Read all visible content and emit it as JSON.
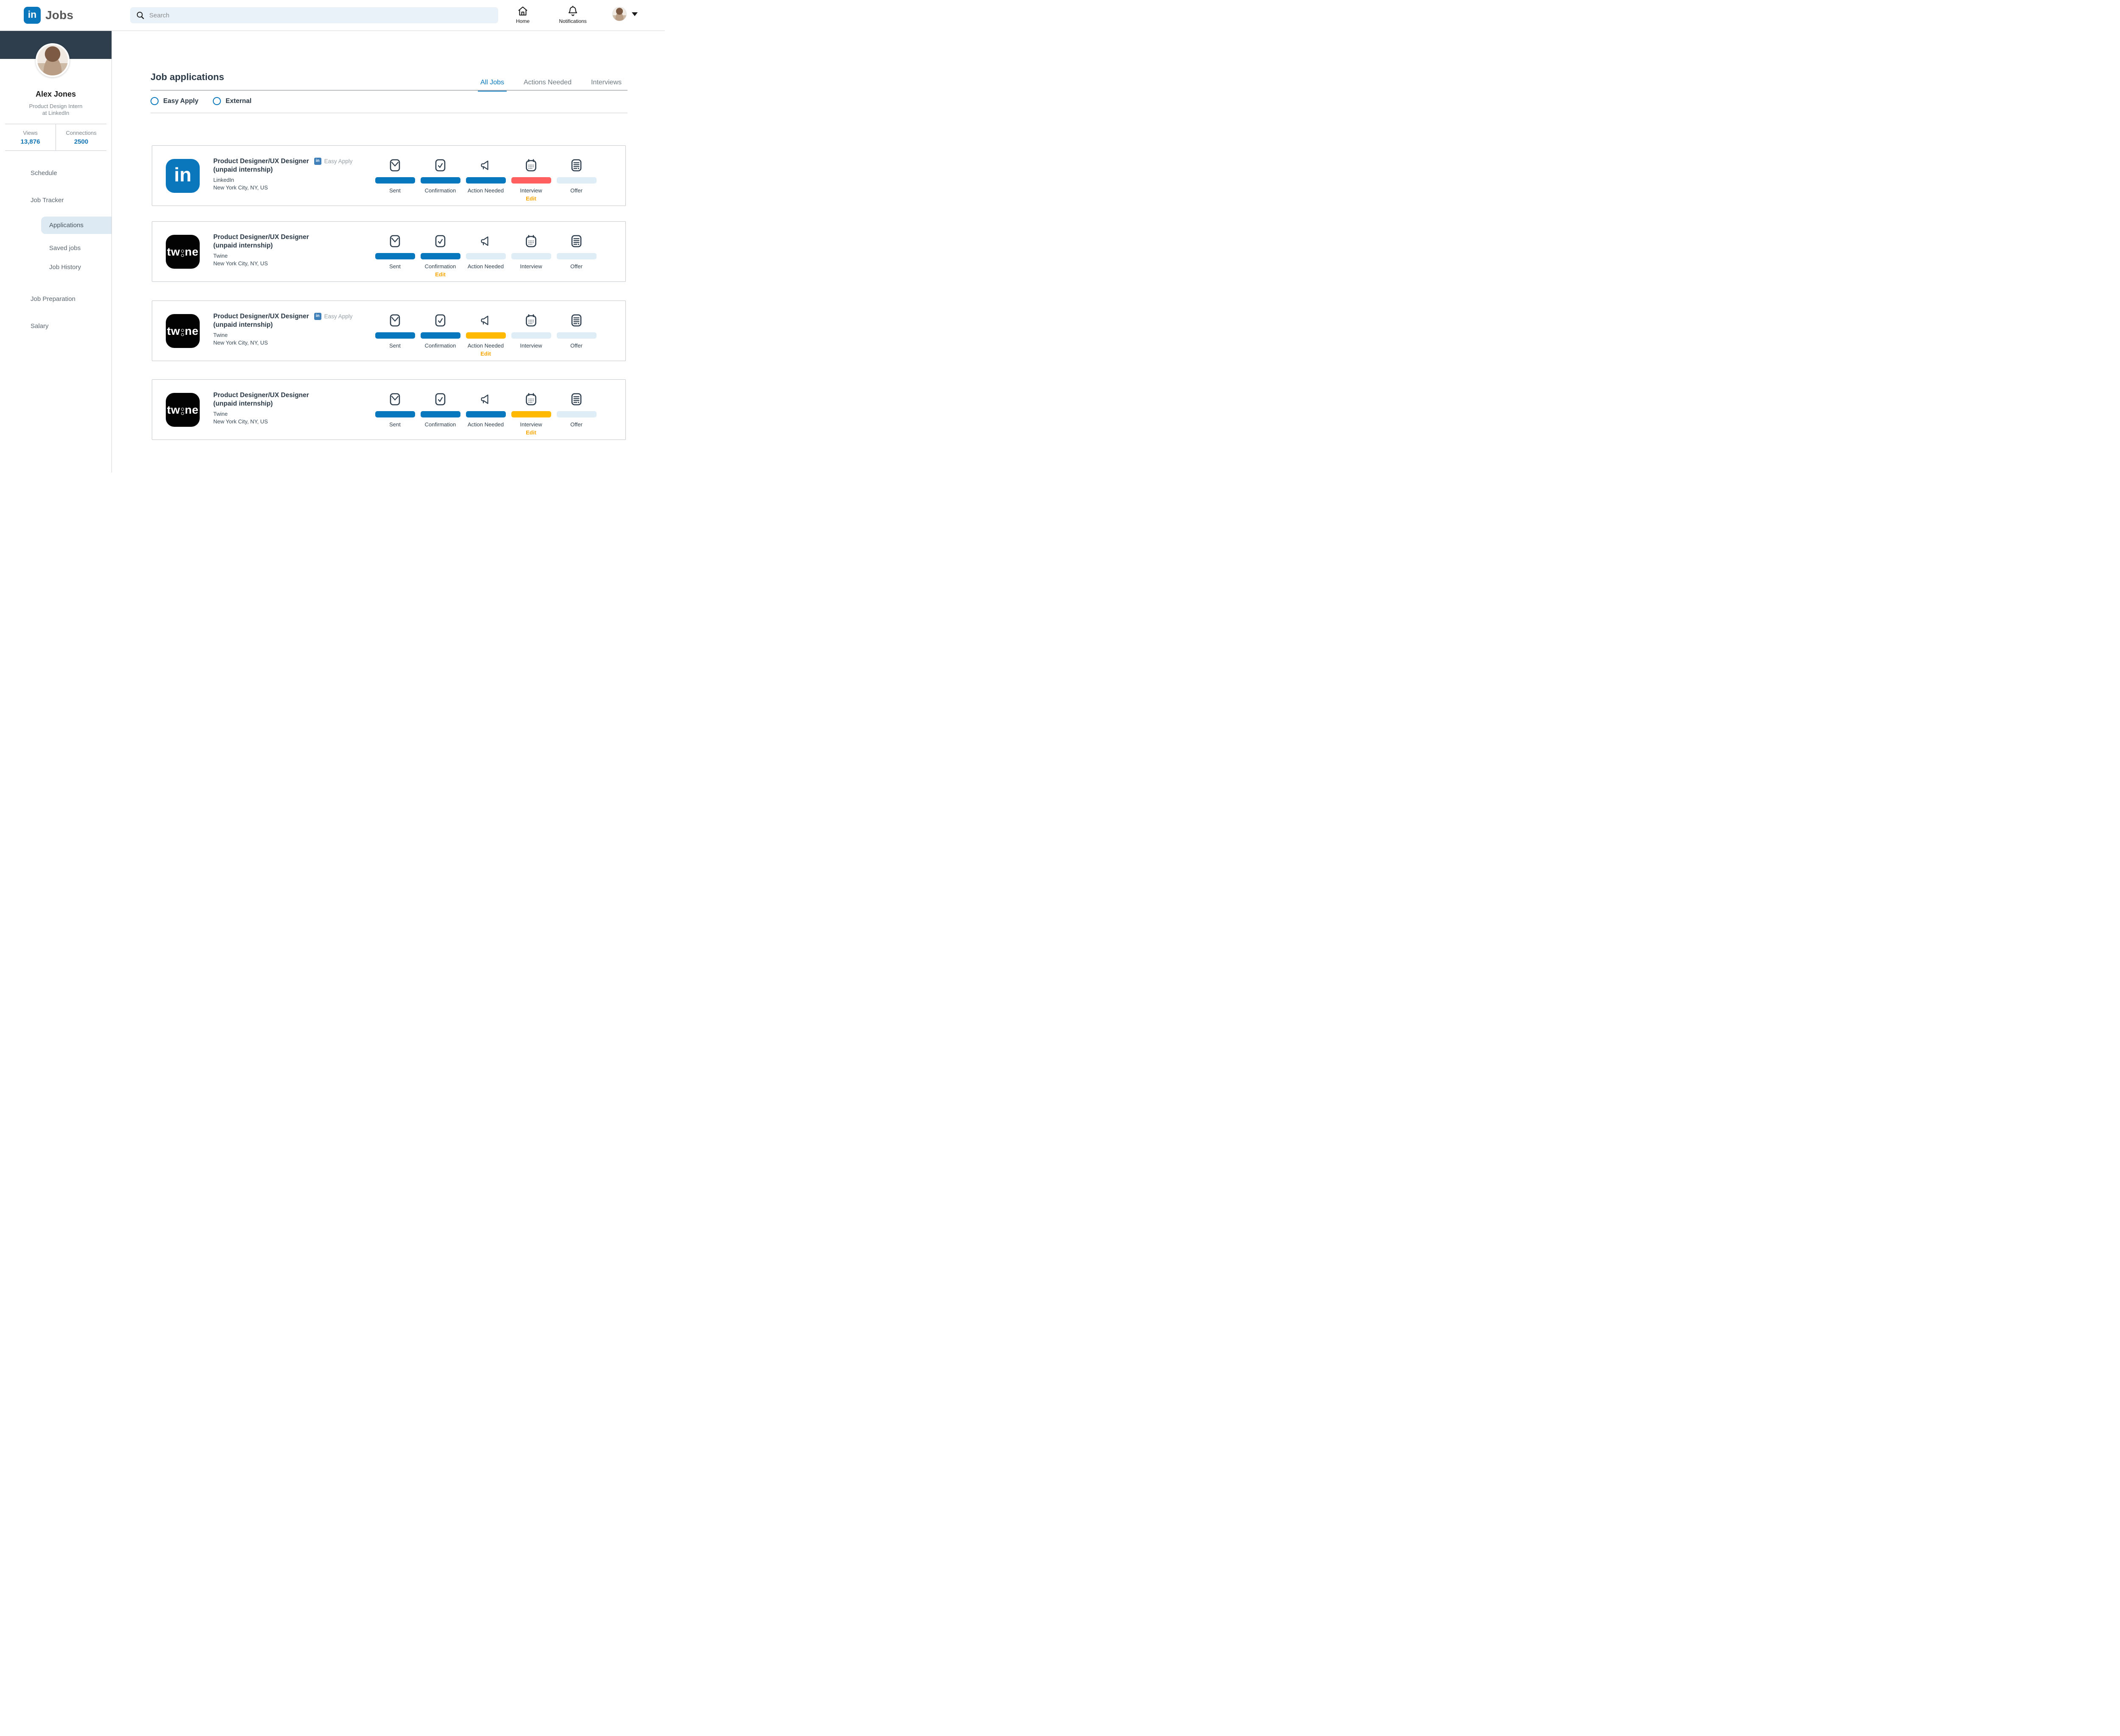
{
  "colors": {
    "accent_blue": "#0a77bd",
    "bar_done": "#0878be",
    "bar_alert": "#ff5f5f",
    "bar_warn": "#ffb900",
    "bar_empty": "#dfedf6",
    "edit_orange": "#f7a600",
    "dark_navy": "#2e3e4d"
  },
  "header": {
    "logo_text": "in",
    "app_title": "Jobs",
    "search_placeholder": "Search",
    "home_label": "Home",
    "notifications_label": "Notifications"
  },
  "sidebar": {
    "name": "Alex Jones",
    "headline_line1": "Product Design Intern",
    "headline_line2": "at LinkedIn",
    "stats": [
      {
        "label": "Views",
        "value": "13,876"
      },
      {
        "label": "Connections",
        "value": "2500"
      }
    ],
    "menu": [
      {
        "label": "Schedule",
        "level": 1,
        "active": false
      },
      {
        "label": "Job Tracker",
        "level": 1,
        "active": false
      },
      {
        "label": "Applications",
        "level": 2,
        "active": true
      },
      {
        "label": "Saved jobs",
        "level": 2,
        "active": false
      },
      {
        "label": "Job History",
        "level": 2,
        "active": false
      },
      {
        "label": "Job Preparation",
        "level": 1,
        "active": false
      },
      {
        "label": "Salary",
        "level": 1,
        "active": false
      }
    ]
  },
  "main": {
    "title": "Job applications",
    "tabs": [
      {
        "label": "All Jobs",
        "active": true
      },
      {
        "label": "Actions Needed",
        "active": false
      },
      {
        "label": "Interviews",
        "active": false
      }
    ],
    "filters": [
      {
        "label": "Easy Apply"
      },
      {
        "label": "External"
      }
    ],
    "stage_labels": [
      "Sent",
      "Confirmation",
      "Action Needed",
      "Interview",
      "Offer"
    ],
    "stage_icons": [
      "mail-icon",
      "checkbox-icon",
      "megaphone-icon",
      "calendar-icon",
      "offer-letter-icon"
    ],
    "edit_label": "Edit",
    "easy_apply_label": "Easy Apply",
    "easy_apply_badge_text": "in",
    "cards": [
      {
        "company_logo": "linkedin",
        "logo_text": "in",
        "title_line1": "Product Designer/UX Designer",
        "title_line2": "(unpaid internship)",
        "easy_apply": true,
        "company": "LinkedIn",
        "location": "New York City, NY, US",
        "stages": [
          "done",
          "done",
          "done",
          "alert",
          "empty"
        ],
        "edit_stage": 3
      },
      {
        "company_logo": "twine",
        "logo_text": "twine",
        "title_line1": "Product Designer/UX Designer",
        "title_line2": "(unpaid internship)",
        "easy_apply": false,
        "company": "Twine",
        "location": "New York City, NY, US",
        "stages": [
          "done",
          "done",
          "empty",
          "empty",
          "empty"
        ],
        "edit_stage": 1
      },
      {
        "company_logo": "twine",
        "logo_text": "twine",
        "title_line1": "Product Designer/UX Designer",
        "title_line2": "(unpaid internship)",
        "easy_apply": true,
        "company": "Twine",
        "location": "New York City, NY, US",
        "stages": [
          "done",
          "done",
          "warn",
          "empty",
          "empty"
        ],
        "edit_stage": 2
      },
      {
        "company_logo": "twine",
        "logo_text": "twine",
        "title_line1": "Product Designer/UX Designer",
        "title_line2": "(unpaid internship)",
        "easy_apply": false,
        "company": "Twine",
        "location": "New York City, NY, US",
        "stages": [
          "done",
          "done",
          "done",
          "warn",
          "empty"
        ],
        "edit_stage": 3
      }
    ]
  }
}
